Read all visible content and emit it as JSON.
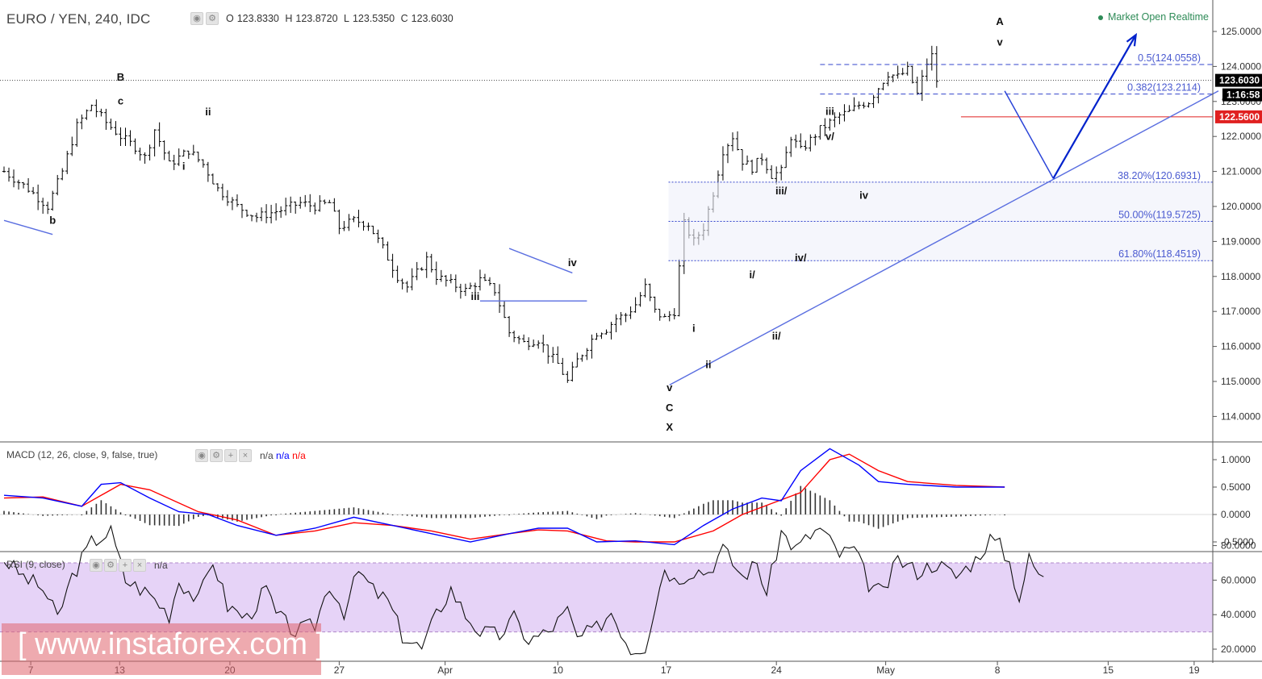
{
  "header": {
    "title": "EURO / YEN, 240, IDC",
    "open_label": "O",
    "open": "123.8330",
    "high_label": "H",
    "high": "123.8720",
    "low_label": "L",
    "low": "123.5350",
    "close_label": "C",
    "close": "123.6030",
    "market_status": "Market Open Realtime"
  },
  "macd": {
    "label": "MACD (12, 26, close, 9, false, true)",
    "values": [
      "n/a",
      "n/a",
      "n/a"
    ]
  },
  "rsi": {
    "label": "RSI (9, close)",
    "value": "n/a"
  },
  "watermark": "[ www.instaforex.com ]",
  "colors": {
    "macd_line": "#0000ff",
    "signal_line": "#ff0000",
    "wave_projection": "#0022cc",
    "trendline": "#5a6ee0",
    "rsi_band": "#e6d3f7",
    "last_price": "#000000",
    "marker_red": "#e02020"
  },
  "chart_data": [
    {
      "type": "bar",
      "subtype": "ohlc",
      "title": "EURO / YEN, 240, IDC",
      "x_tick_labels": [
        "7",
        "13",
        "20",
        "27",
        "Apr",
        "10",
        "17",
        "24",
        "May",
        "8",
        "15",
        "19"
      ],
      "y_tick_labels": [
        "125.0000",
        "124.0000",
        "123.0000",
        "122.0000",
        "121.0000",
        "120.0000",
        "119.0000",
        "118.0000",
        "117.0000",
        "116.0000",
        "115.0000",
        "114.0000"
      ],
      "ylim": [
        113.2,
        125.6
      ],
      "close_path": [
        [
          0,
          121.0
        ],
        [
          5,
          120.5
        ],
        [
          9,
          120.0
        ],
        [
          12,
          121.0
        ],
        [
          15,
          122.3
        ],
        [
          18,
          122.9
        ],
        [
          21,
          122.4
        ],
        [
          24,
          122.0
        ],
        [
          27,
          121.7
        ],
        [
          29,
          121.4
        ],
        [
          31,
          122.2
        ],
        [
          34,
          121.2
        ],
        [
          38,
          121.6
        ],
        [
          41,
          121.2
        ],
        [
          44,
          120.5
        ],
        [
          48,
          120.0
        ],
        [
          52,
          119.7
        ],
        [
          57,
          119.9
        ],
        [
          61,
          120.1
        ],
        [
          64,
          120.0
        ],
        [
          67,
          120.1
        ],
        [
          69,
          119.4
        ],
        [
          72,
          119.6
        ],
        [
          75,
          119.5
        ],
        [
          78,
          118.8
        ],
        [
          81,
          118.0
        ],
        [
          83,
          117.7
        ],
        [
          85,
          118.1
        ],
        [
          87,
          118.5
        ],
        [
          89,
          118.0
        ],
        [
          92,
          117.8
        ],
        [
          95,
          117.6
        ],
        [
          98,
          117.9
        ],
        [
          101,
          117.6
        ],
        [
          104,
          116.4
        ],
        [
          107,
          116.1
        ],
        [
          110,
          116.2
        ],
        [
          112,
          115.8
        ],
        [
          114,
          115.5
        ],
        [
          116,
          115.0
        ],
        [
          118,
          115.6
        ],
        [
          120,
          116.0
        ],
        [
          122,
          116.4
        ],
        [
          124,
          116.5
        ],
        [
          126,
          116.8
        ],
        [
          128,
          116.9
        ],
        [
          130,
          117.2
        ],
        [
          132,
          117.7
        ],
        [
          134,
          117.0
        ],
        [
          136,
          116.8
        ],
        [
          138,
          117.0
        ],
        [
          140,
          119.5
        ],
        [
          142,
          119.0
        ],
        [
          144,
          119.4
        ],
        [
          146,
          120.4
        ],
        [
          148,
          121.6
        ],
        [
          150,
          122.0
        ],
        [
          152,
          121.3
        ],
        [
          154,
          121.1
        ],
        [
          156,
          121.4
        ],
        [
          158,
          120.9
        ],
        [
          160,
          121.0
        ],
        [
          162,
          122.0
        ],
        [
          164,
          121.6
        ],
        [
          166,
          121.9
        ],
        [
          168,
          122.2
        ],
        [
          170,
          122.4
        ],
        [
          172,
          122.6
        ],
        [
          174,
          122.7
        ],
        [
          176,
          122.9
        ],
        [
          178,
          123.0
        ],
        [
          180,
          123.4
        ],
        [
          182,
          123.8
        ],
        [
          184,
          123.7
        ],
        [
          186,
          123.9
        ],
        [
          188,
          123.2
        ],
        [
          190,
          124.1
        ],
        [
          191,
          124.3
        ],
        [
          192,
          123.6
        ]
      ],
      "last_price": "123.6030",
      "countdown": "1:16:58",
      "marked_level": "122.5600",
      "fibonacci": [
        {
          "label": "0.5(124.0558)",
          "value": 124.0558
        },
        {
          "label": "0.382(123.2114)",
          "value": 123.2114
        },
        {
          "label": "38.20%(120.6931)",
          "value": 120.6931
        },
        {
          "label": "50.00%(119.5725)",
          "value": 119.5725
        },
        {
          "label": "61.80%(118.4519)",
          "value": 118.4519
        }
      ],
      "wave_labels": [
        {
          "text": "B",
          "bar": 24,
          "price": 123.6
        },
        {
          "text": "c",
          "bar": 24,
          "price": 122.92
        },
        {
          "text": "b",
          "bar": 10,
          "price": 119.5
        },
        {
          "text": "ii",
          "bar": 42,
          "price": 122.6
        },
        {
          "text": "i",
          "bar": 37,
          "price": 121.05
        },
        {
          "text": "iii",
          "bar": 97,
          "price": 117.33
        },
        {
          "text": "iv",
          "bar": 117,
          "price": 118.3
        },
        {
          "text": "v",
          "bar": 137,
          "price": 114.72
        },
        {
          "text": "C",
          "bar": 137,
          "price": 114.15
        },
        {
          "text": "X",
          "bar": 137,
          "price": 113.6
        },
        {
          "text": "i",
          "bar": 142,
          "price": 116.42
        },
        {
          "text": "ii",
          "bar": 145,
          "price": 115.38
        },
        {
          "text": "i/",
          "bar": 154,
          "price": 117.95
        },
        {
          "text": "ii/",
          "bar": 159,
          "price": 116.2
        },
        {
          "text": "iii/",
          "bar": 160,
          "price": 120.35
        },
        {
          "text": "iv/",
          "bar": 164,
          "price": 118.43
        },
        {
          "text": "v/",
          "bar": 170,
          "price": 121.9
        },
        {
          "text": "iii",
          "bar": 170,
          "price": 122.62
        },
        {
          "text": "iv",
          "bar": 177,
          "price": 120.22
        },
        {
          "text": "v",
          "bar": 205,
          "price": 124.6
        },
        {
          "text": "A",
          "bar": 205,
          "price": 125.18
        }
      ],
      "projection": [
        [
          206,
          123.3
        ],
        [
          216,
          120.8
        ],
        [
          233,
          124.9
        ]
      ],
      "trendline": [
        [
          137,
          114.9
        ],
        [
          250,
          123.3
        ]
      ],
      "triangle": [
        [
          98,
          117.3
        ],
        [
          104,
          118.8
        ],
        [
          117,
          118.1
        ],
        [
          120,
          117.3
        ]
      ],
      "left_line": [
        [
          0,
          119.6
        ],
        [
          10,
          119.2
        ]
      ]
    },
    {
      "type": "line",
      "title": "MACD (12, 26, close, 9, false, true)",
      "y_tick_labels": [
        "1.0000",
        "0.5000",
        "0.0000",
        "-0.5000"
      ],
      "ylim": [
        -0.7,
        1.25
      ],
      "series": [
        {
          "points": [
            [
              0,
              0.35
            ],
            [
              8,
              0.3
            ],
            [
              16,
              0.15
            ],
            [
              20,
              0.55
            ],
            [
              24,
              0.58
            ],
            [
              30,
              0.3
            ],
            [
              36,
              0.05
            ],
            [
              42,
              0.0
            ],
            [
              48,
              -0.2
            ],
            [
              56,
              -0.38
            ],
            [
              64,
              -0.25
            ],
            [
              72,
              -0.05
            ],
            [
              80,
              -0.2
            ],
            [
              88,
              -0.35
            ],
            [
              96,
              -0.5
            ],
            [
              104,
              -0.35
            ],
            [
              110,
              -0.25
            ],
            [
              116,
              -0.25
            ],
            [
              122,
              -0.5
            ],
            [
              130,
              -0.48
            ],
            [
              138,
              -0.55
            ],
            [
              144,
              -0.2
            ],
            [
              150,
              0.1
            ],
            [
              156,
              0.3
            ],
            [
              160,
              0.25
            ],
            [
              164,
              0.8
            ],
            [
              170,
              1.2
            ],
            [
              176,
              0.9
            ],
            [
              180,
              0.6
            ],
            [
              186,
              0.55
            ],
            [
              196,
              0.5
            ],
            [
              206,
              0.5
            ]
          ]
        },
        {
          "points": [
            [
              0,
              0.3
            ],
            [
              8,
              0.32
            ],
            [
              16,
              0.15
            ],
            [
              24,
              0.55
            ],
            [
              30,
              0.45
            ],
            [
              40,
              0.05
            ],
            [
              48,
              -0.1
            ],
            [
              56,
              -0.38
            ],
            [
              64,
              -0.3
            ],
            [
              72,
              -0.15
            ],
            [
              80,
              -0.2
            ],
            [
              88,
              -0.3
            ],
            [
              96,
              -0.45
            ],
            [
              104,
              -0.35
            ],
            [
              110,
              -0.28
            ],
            [
              116,
              -0.3
            ],
            [
              124,
              -0.48
            ],
            [
              130,
              -0.5
            ],
            [
              138,
              -0.5
            ],
            [
              146,
              -0.3
            ],
            [
              152,
              0.0
            ],
            [
              158,
              0.2
            ],
            [
              164,
              0.4
            ],
            [
              170,
              1.0
            ],
            [
              174,
              1.1
            ],
            [
              180,
              0.8
            ],
            [
              186,
              0.6
            ],
            [
              196,
              0.53
            ],
            [
              206,
              0.5
            ]
          ]
        }
      ],
      "histogram_bars": 206
    },
    {
      "type": "line",
      "title": "RSI (9, close)",
      "y_tick_labels": [
        "80.0000",
        "60.0000",
        "40.0000",
        "20.0000"
      ],
      "ylim": [
        10,
        95
      ],
      "band": [
        30,
        70
      ],
      "series": [
        {
          "points": [
            [
              0,
              72
            ],
            [
              4,
              62
            ],
            [
              8,
              55
            ],
            [
              11,
              38
            ],
            [
              14,
              62
            ],
            [
              18,
              82
            ],
            [
              22,
              88
            ],
            [
              25,
              60
            ],
            [
              30,
              52
            ],
            [
              34,
              40
            ],
            [
              36,
              60
            ],
            [
              40,
              48
            ],
            [
              43,
              72
            ],
            [
              46,
              45
            ],
            [
              50,
              38
            ],
            [
              54,
              55
            ],
            [
              56,
              40
            ],
            [
              60,
              30
            ],
            [
              64,
              34
            ],
            [
              67,
              58
            ],
            [
              70,
              42
            ],
            [
              73,
              65
            ],
            [
              76,
              54
            ],
            [
              79,
              48
            ],
            [
              82,
              28
            ],
            [
              86,
              20
            ],
            [
              89,
              40
            ],
            [
              92,
              55
            ],
            [
              95,
              40
            ],
            [
              98,
              30
            ],
            [
              102,
              28
            ],
            [
              105,
              38
            ],
            [
              108,
              25
            ],
            [
              112,
              30
            ],
            [
              116,
              42
            ],
            [
              118,
              26
            ],
            [
              122,
              32
            ],
            [
              125,
              42
            ],
            [
              129,
              20
            ],
            [
              132,
              22
            ],
            [
              136,
              68
            ],
            [
              138,
              60
            ],
            [
              142,
              66
            ],
            [
              145,
              65
            ],
            [
              148,
              78
            ],
            [
              152,
              62
            ],
            [
              155,
              70
            ],
            [
              157,
              52
            ],
            [
              160,
              88
            ],
            [
              163,
              78
            ],
            [
              166,
              86
            ],
            [
              168,
              90
            ],
            [
              172,
              75
            ],
            [
              175,
              78
            ],
            [
              178,
              58
            ],
            [
              181,
              52
            ],
            [
              184,
              72
            ],
            [
              188,
              65
            ],
            [
              192,
              70
            ],
            [
              196,
              62
            ],
            [
              200,
              72
            ],
            [
              203,
              84
            ],
            [
              205,
              80
            ],
            [
              207,
              70
            ],
            [
              209,
              50
            ],
            [
              211,
              72
            ],
            [
              214,
              60
            ]
          ]
        }
      ]
    }
  ]
}
